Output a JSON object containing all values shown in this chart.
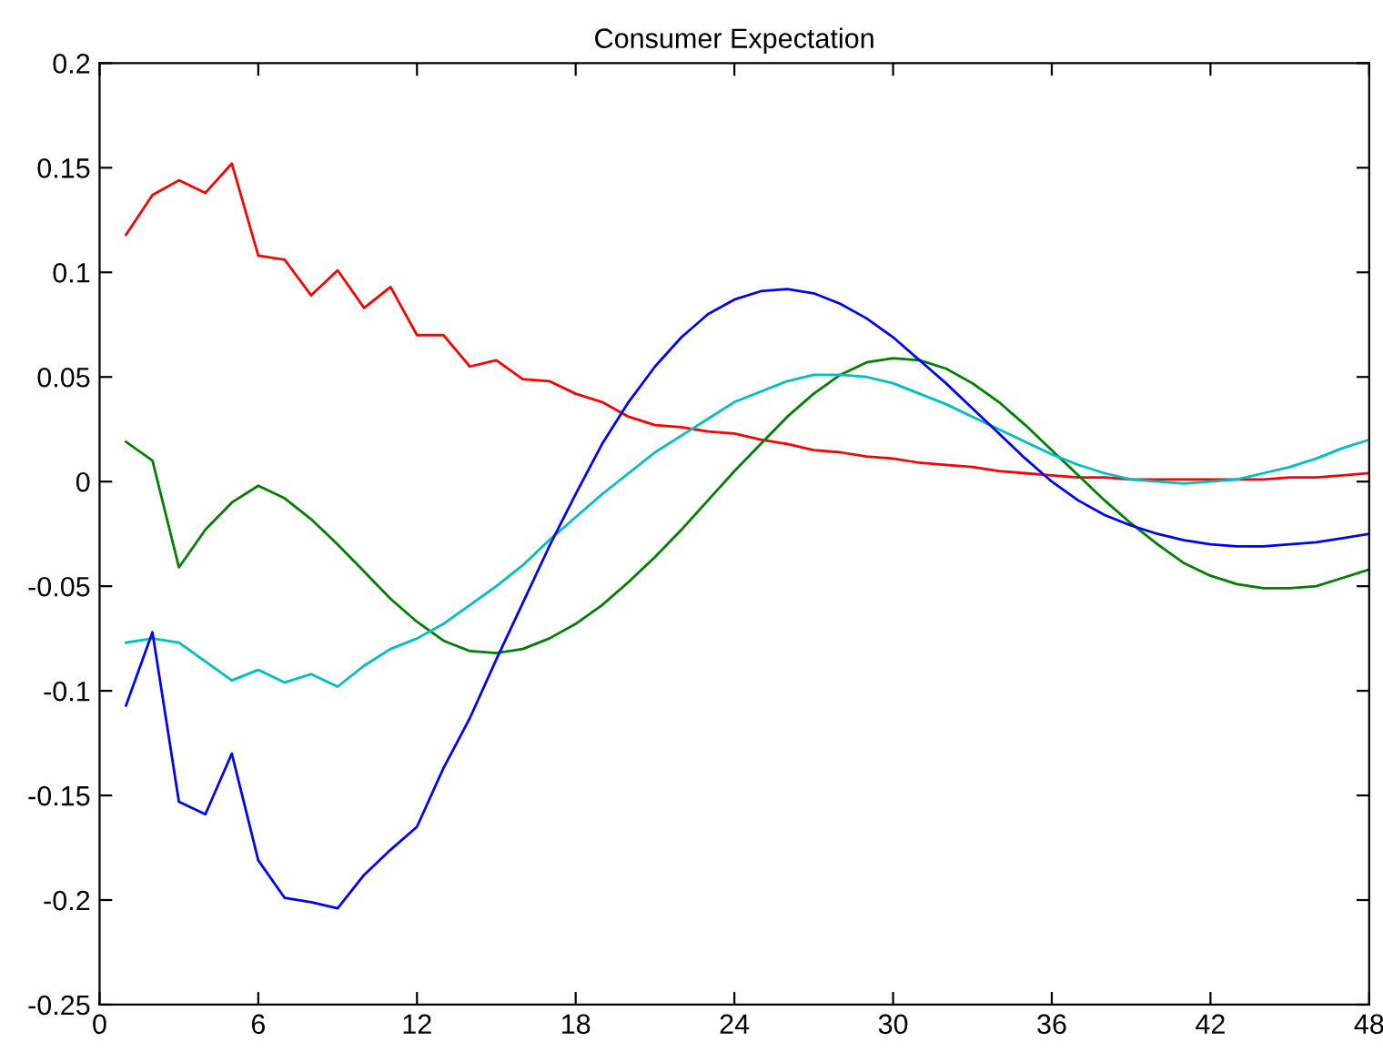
{
  "chart_data": {
    "type": "line",
    "title": "Consumer Expectation",
    "x": [
      1,
      2,
      3,
      4,
      5,
      6,
      7,
      8,
      9,
      10,
      11,
      12,
      13,
      14,
      15,
      16,
      17,
      18,
      19,
      20,
      21,
      22,
      23,
      24,
      25,
      26,
      27,
      28,
      29,
      30,
      31,
      32,
      33,
      34,
      35,
      36,
      37,
      38,
      39,
      40,
      41,
      42,
      43,
      44,
      45,
      46,
      47,
      48
    ],
    "series": [
      {
        "color": "#ff0000",
        "values": [
          0.118,
          0.137,
          0.144,
          0.138,
          0.152,
          0.108,
          0.106,
          0.089,
          0.101,
          0.083,
          0.093,
          0.07,
          0.07,
          0.055,
          0.058,
          0.049,
          0.048,
          0.042,
          0.038,
          0.031,
          0.027,
          0.026,
          0.024,
          0.023,
          0.02,
          0.018,
          0.015,
          0.014,
          0.012,
          0.011,
          0.009,
          0.008,
          0.007,
          0.005,
          0.004,
          0.003,
          0.002,
          0.002,
          0.001,
          0.001,
          0.001,
          0.001,
          0.001,
          0.001,
          0.002,
          0.002,
          0.003,
          0.004
        ]
      },
      {
        "color": "#008000",
        "values": [
          0.019,
          0.01,
          -0.041,
          -0.023,
          -0.01,
          -0.002,
          -0.008,
          -0.018,
          -0.03,
          -0.043,
          -0.056,
          -0.067,
          -0.076,
          -0.081,
          -0.082,
          -0.08,
          -0.075,
          -0.068,
          -0.059,
          -0.048,
          -0.036,
          -0.023,
          -0.009,
          0.005,
          0.018,
          0.031,
          0.042,
          0.051,
          0.057,
          0.059,
          0.058,
          0.054,
          0.047,
          0.038,
          0.027,
          0.015,
          0.003,
          -0.009,
          -0.02,
          -0.03,
          -0.039,
          -0.045,
          -0.049,
          -0.051,
          -0.051,
          -0.05,
          -0.046,
          -0.042
        ]
      },
      {
        "color": "#00bfbf",
        "values": [
          -0.077,
          -0.075,
          -0.077,
          -0.086,
          -0.095,
          -0.09,
          -0.096,
          -0.092,
          -0.098,
          -0.088,
          -0.08,
          -0.075,
          -0.068,
          -0.059,
          -0.05,
          -0.04,
          -0.028,
          -0.017,
          -0.006,
          0.004,
          0.014,
          0.022,
          0.03,
          0.038,
          0.043,
          0.048,
          0.051,
          0.051,
          0.05,
          0.047,
          0.042,
          0.037,
          0.031,
          0.025,
          0.019,
          0.013,
          0.008,
          0.004,
          0.001,
          0.0,
          -0.001,
          0.0,
          0.001,
          0.004,
          0.007,
          0.011,
          0.016,
          0.02
        ]
      },
      {
        "color": "#0000ff",
        "values": [
          -0.107,
          -0.072,
          -0.153,
          -0.159,
          -0.13,
          -0.181,
          -0.199,
          -0.201,
          -0.204,
          -0.188,
          -0.176,
          -0.165,
          -0.137,
          -0.113,
          -0.085,
          -0.058,
          -0.031,
          -0.006,
          0.018,
          0.038,
          0.055,
          0.069,
          0.08,
          0.087,
          0.091,
          0.092,
          0.09,
          0.085,
          0.078,
          0.069,
          0.058,
          0.047,
          0.035,
          0.023,
          0.011,
          0.0,
          -0.009,
          -0.016,
          -0.021,
          -0.025,
          -0.028,
          -0.03,
          -0.031,
          -0.031,
          -0.03,
          -0.029,
          -0.027,
          -0.025
        ]
      }
    ],
    "xlim": [
      0,
      48
    ],
    "xticks": [
      0,
      6,
      12,
      18,
      24,
      30,
      36,
      42,
      48
    ],
    "ylim": [
      -0.25,
      0.2
    ],
    "yticks": [
      -0.25,
      -0.2,
      -0.15,
      -0.1,
      -0.05,
      0,
      0.05,
      0.1,
      0.15,
      0.2
    ],
    "marker": "none",
    "line_style": "solid"
  }
}
